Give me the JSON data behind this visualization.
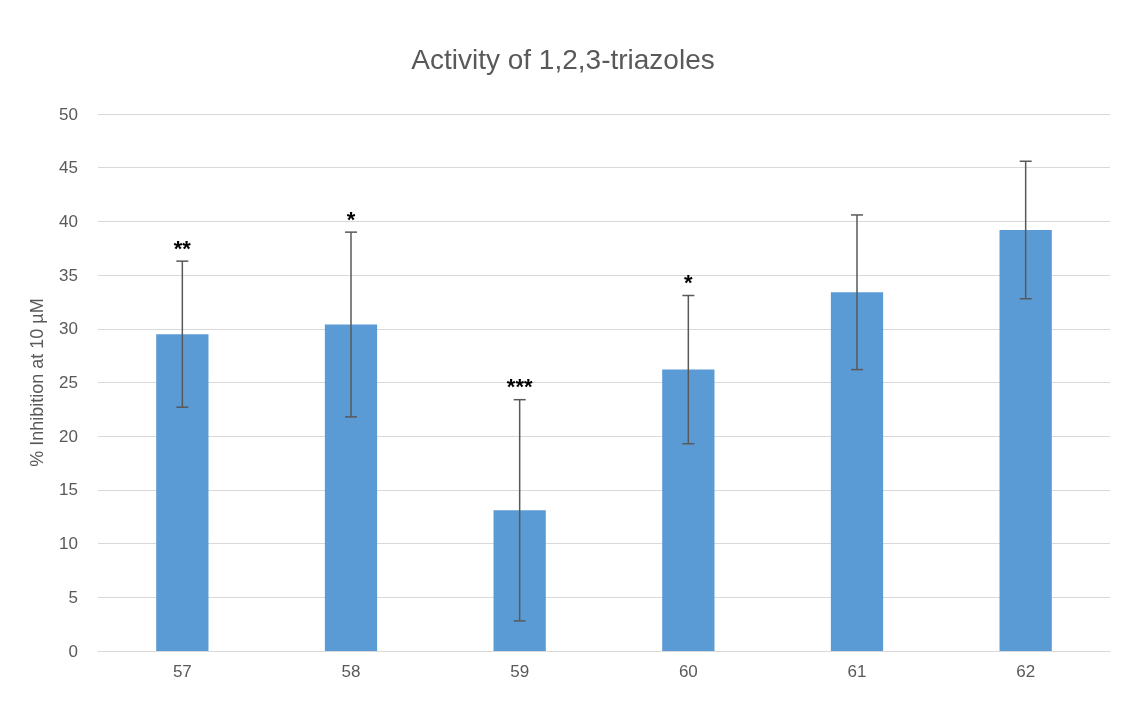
{
  "chart_data": {
    "type": "bar",
    "title": "Activity of 1,2,3-triazoles",
    "ylabel": "% Inhibition at 10 µM",
    "categories": [
      "57",
      "58",
      "59",
      "60",
      "61",
      "62"
    ],
    "values": [
      29.5,
      30.4,
      13.1,
      26.2,
      33.4,
      39.2
    ],
    "errors": [
      6.8,
      8.6,
      10.3,
      6.9,
      7.2,
      6.4
    ],
    "color": "#5b9bd5",
    "ylim": [
      0,
      50
    ],
    "yticks": [
      0,
      5,
      10,
      15,
      20,
      25,
      30,
      35,
      40,
      45,
      50
    ],
    "grid": "y",
    "annotations": [
      {
        "text": "**",
        "x": "57",
        "y": 36.3
      },
      {
        "text": "*",
        "x": "58",
        "y": 39
      },
      {
        "text": "***",
        "x": "59",
        "y": 23.4
      },
      {
        "text": "*",
        "x": "60",
        "y": 33.1
      }
    ]
  }
}
